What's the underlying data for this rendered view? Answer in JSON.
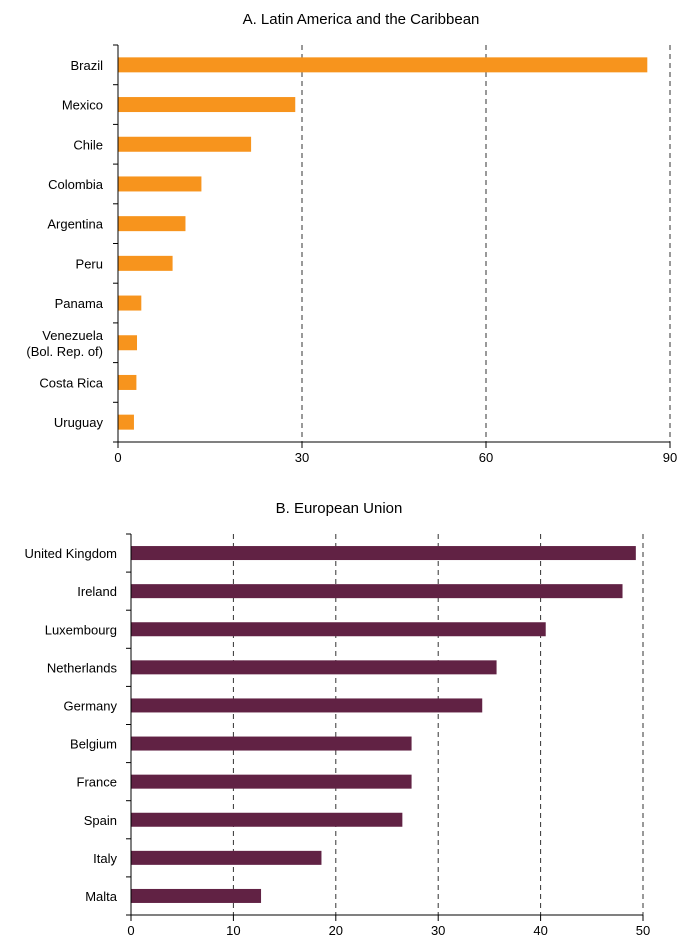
{
  "chart_data": [
    {
      "type": "bar",
      "orientation": "horizontal",
      "title": "A. Latin America and the Caribbean",
      "categories": [
        "Brazil",
        "Mexico",
        "Chile",
        "Colombia",
        "Argentina",
        "Peru",
        "Panama",
        "Venezuela (Bol. Rep. of)",
        "Costa Rica",
        "Uruguay"
      ],
      "category_lines": [
        [
          "Brazil"
        ],
        [
          "Mexico"
        ],
        [
          "Chile"
        ],
        [
          "Colombia"
        ],
        [
          "Argentina"
        ],
        [
          "Peru"
        ],
        [
          "Panama"
        ],
        [
          "Venezuela",
          "(Bol. Rep. of)"
        ],
        [
          "Costa Rica"
        ],
        [
          "Uruguay"
        ]
      ],
      "values": [
        86.3,
        28.9,
        21.7,
        13.6,
        11.0,
        8.9,
        3.8,
        3.1,
        3.0,
        2.6
      ],
      "xlim": [
        0,
        90
      ],
      "xticks": [
        0,
        30,
        60,
        90
      ],
      "xtick_labels": [
        "0",
        "30",
        "60",
        "90"
      ],
      "grid": "vertical dashed",
      "color": "#f7941d"
    },
    {
      "type": "bar",
      "orientation": "horizontal",
      "title": "B. European Union",
      "categories": [
        "United Kingdom",
        "Ireland",
        "Luxembourg",
        "Netherlands",
        "Germany",
        "Belgium",
        "France",
        "Spain",
        "Italy",
        "Malta"
      ],
      "category_lines": [
        [
          "United Kingdom"
        ],
        [
          "Ireland"
        ],
        [
          "Luxembourg"
        ],
        [
          "Netherlands"
        ],
        [
          "Germany"
        ],
        [
          "Belgium"
        ],
        [
          "France"
        ],
        [
          "Spain"
        ],
        [
          "Italy"
        ],
        [
          "Malta"
        ]
      ],
      "values": [
        49.3,
        48.0,
        40.5,
        35.7,
        34.3,
        27.4,
        27.4,
        26.5,
        18.6,
        12.7
      ],
      "xlim": [
        0,
        50
      ],
      "xticks": [
        0,
        10,
        20,
        30,
        40,
        50
      ],
      "xtick_labels": [
        "0",
        "10",
        "20",
        "30",
        "40",
        "50"
      ],
      "grid": "vertical dashed",
      "color": "#612244"
    }
  ]
}
